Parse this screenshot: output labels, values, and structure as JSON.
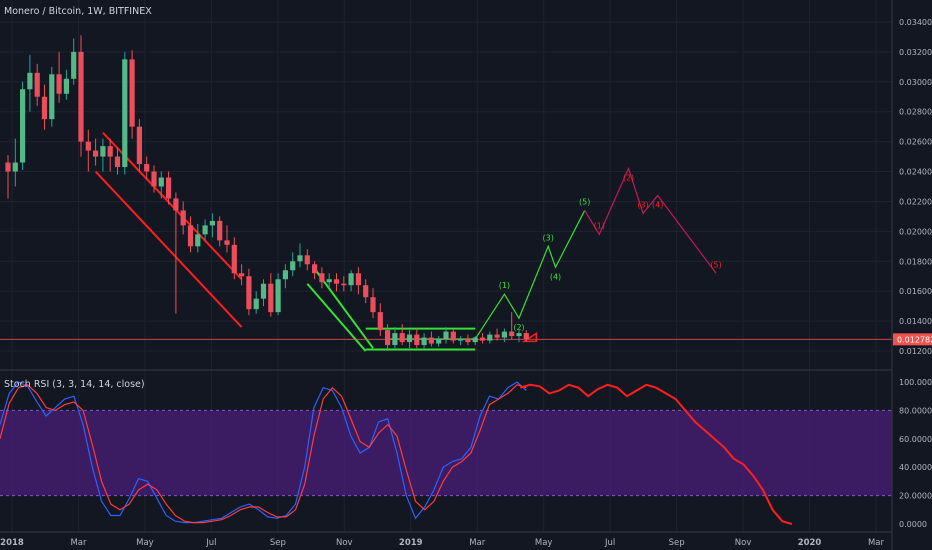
{
  "chart_data": [
    {
      "type": "candlestick",
      "title": "Monero / Bitcoin, 1W, BITFINEX",
      "symbol": "Monero / Bitcoin",
      "interval": "1W",
      "exchange": "BITFINEX",
      "current_price_label": "0.012782",
      "current_price": 0.012782,
      "ylim": [
        0.011,
        0.0352
      ],
      "y_ticks": [
        "0.012000",
        "0.014000",
        "0.016000",
        "0.018000",
        "0.020000",
        "0.022000",
        "0.024000",
        "0.026000",
        "0.028000",
        "0.030000",
        "0.032000",
        "0.034000"
      ],
      "x_ticks": [
        "2018",
        "Mar",
        "May",
        "Jul",
        "Sep",
        "Nov",
        "2019",
        "Mar",
        "May",
        "Jul",
        "Sep",
        "Nov",
        "2020",
        "Mar"
      ],
      "candles": [
        {
          "o": 0.0246,
          "h": 0.0251,
          "l": 0.0222,
          "c": 0.024
        },
        {
          "o": 0.024,
          "h": 0.0262,
          "l": 0.023,
          "c": 0.0246
        },
        {
          "o": 0.0246,
          "h": 0.03,
          "l": 0.0241,
          "c": 0.0295
        },
        {
          "o": 0.0295,
          "h": 0.0318,
          "l": 0.028,
          "c": 0.0306
        },
        {
          "o": 0.0306,
          "h": 0.0312,
          "l": 0.0284,
          "c": 0.029
        },
        {
          "o": 0.029,
          "h": 0.0298,
          "l": 0.0268,
          "c": 0.0275
        },
        {
          "o": 0.0275,
          "h": 0.031,
          "l": 0.027,
          "c": 0.0305
        },
        {
          "o": 0.0305,
          "h": 0.032,
          "l": 0.0286,
          "c": 0.0292
        },
        {
          "o": 0.0292,
          "h": 0.0308,
          "l": 0.0288,
          "c": 0.0302
        },
        {
          "o": 0.0302,
          "h": 0.0329,
          "l": 0.0298,
          "c": 0.032
        },
        {
          "o": 0.032,
          "h": 0.0331,
          "l": 0.025,
          "c": 0.026
        },
        {
          "o": 0.026,
          "h": 0.0268,
          "l": 0.024,
          "c": 0.0254
        },
        {
          "o": 0.0254,
          "h": 0.0262,
          "l": 0.0244,
          "c": 0.025
        },
        {
          "o": 0.025,
          "h": 0.0262,
          "l": 0.024,
          "c": 0.0257
        },
        {
          "o": 0.0257,
          "h": 0.0262,
          "l": 0.024,
          "c": 0.025
        },
        {
          "o": 0.025,
          "h": 0.0256,
          "l": 0.0238,
          "c": 0.0243
        },
        {
          "o": 0.0243,
          "h": 0.032,
          "l": 0.0238,
          "c": 0.0315
        },
        {
          "o": 0.0315,
          "h": 0.0321,
          "l": 0.0262,
          "c": 0.027
        },
        {
          "o": 0.027,
          "h": 0.0275,
          "l": 0.024,
          "c": 0.0245
        },
        {
          "o": 0.0245,
          "h": 0.025,
          "l": 0.0235,
          "c": 0.024
        },
        {
          "o": 0.024,
          "h": 0.0244,
          "l": 0.0226,
          "c": 0.023
        },
        {
          "o": 0.023,
          "h": 0.024,
          "l": 0.0222,
          "c": 0.0236
        },
        {
          "o": 0.0236,
          "h": 0.024,
          "l": 0.0218,
          "c": 0.0222
        },
        {
          "o": 0.0222,
          "h": 0.0226,
          "l": 0.0145,
          "c": 0.0214
        },
        {
          "o": 0.0214,
          "h": 0.022,
          "l": 0.0198,
          "c": 0.0204
        },
        {
          "o": 0.0204,
          "h": 0.021,
          "l": 0.0186,
          "c": 0.019
        },
        {
          "o": 0.019,
          "h": 0.0205,
          "l": 0.0186,
          "c": 0.0198
        },
        {
          "o": 0.0198,
          "h": 0.0208,
          "l": 0.0194,
          "c": 0.0204
        },
        {
          "o": 0.0204,
          "h": 0.0212,
          "l": 0.0196,
          "c": 0.0207
        },
        {
          "o": 0.0207,
          "h": 0.021,
          "l": 0.019,
          "c": 0.0194
        },
        {
          "o": 0.0194,
          "h": 0.0204,
          "l": 0.0186,
          "c": 0.0191
        },
        {
          "o": 0.0191,
          "h": 0.0196,
          "l": 0.0168,
          "c": 0.0172
        },
        {
          "o": 0.0172,
          "h": 0.0178,
          "l": 0.0164,
          "c": 0.017
        },
        {
          "o": 0.017,
          "h": 0.0175,
          "l": 0.0144,
          "c": 0.0148
        },
        {
          "o": 0.0148,
          "h": 0.016,
          "l": 0.0145,
          "c": 0.0155
        },
        {
          "o": 0.0155,
          "h": 0.0168,
          "l": 0.015,
          "c": 0.0165
        },
        {
          "o": 0.0165,
          "h": 0.0172,
          "l": 0.0143,
          "c": 0.0146
        },
        {
          "o": 0.0146,
          "h": 0.0172,
          "l": 0.0144,
          "c": 0.0168
        },
        {
          "o": 0.0168,
          "h": 0.0178,
          "l": 0.0162,
          "c": 0.0174
        },
        {
          "o": 0.0174,
          "h": 0.0186,
          "l": 0.017,
          "c": 0.018
        },
        {
          "o": 0.018,
          "h": 0.0192,
          "l": 0.0176,
          "c": 0.0184
        },
        {
          "o": 0.0184,
          "h": 0.0188,
          "l": 0.0174,
          "c": 0.0178
        },
        {
          "o": 0.0178,
          "h": 0.018,
          "l": 0.0168,
          "c": 0.0172
        },
        {
          "o": 0.0172,
          "h": 0.0176,
          "l": 0.0162,
          "c": 0.0166
        },
        {
          "o": 0.0166,
          "h": 0.0172,
          "l": 0.0162,
          "c": 0.0168
        },
        {
          "o": 0.0168,
          "h": 0.0172,
          "l": 0.016,
          "c": 0.0165
        },
        {
          "o": 0.0165,
          "h": 0.017,
          "l": 0.016,
          "c": 0.0164
        },
        {
          "o": 0.0164,
          "h": 0.0174,
          "l": 0.016,
          "c": 0.0172
        },
        {
          "o": 0.0172,
          "h": 0.0176,
          "l": 0.0158,
          "c": 0.0164
        },
        {
          "o": 0.0164,
          "h": 0.0168,
          "l": 0.0152,
          "c": 0.0156
        },
        {
          "o": 0.0156,
          "h": 0.0162,
          "l": 0.0142,
          "c": 0.0146
        },
        {
          "o": 0.0146,
          "h": 0.0152,
          "l": 0.013,
          "c": 0.0134
        },
        {
          "o": 0.0134,
          "h": 0.0138,
          "l": 0.012,
          "c": 0.0124
        },
        {
          "o": 0.0124,
          "h": 0.0136,
          "l": 0.0122,
          "c": 0.0132
        },
        {
          "o": 0.0132,
          "h": 0.0138,
          "l": 0.0124,
          "c": 0.0126
        },
        {
          "o": 0.0126,
          "h": 0.0134,
          "l": 0.0122,
          "c": 0.0131
        },
        {
          "o": 0.0131,
          "h": 0.0135,
          "l": 0.0122,
          "c": 0.0124
        },
        {
          "o": 0.0124,
          "h": 0.0132,
          "l": 0.0122,
          "c": 0.0129
        },
        {
          "o": 0.0129,
          "h": 0.0133,
          "l": 0.0123,
          "c": 0.0125
        },
        {
          "o": 0.0125,
          "h": 0.013,
          "l": 0.0123,
          "c": 0.0128
        },
        {
          "o": 0.0128,
          "h": 0.0136,
          "l": 0.0125,
          "c": 0.0133
        },
        {
          "o": 0.0133,
          "h": 0.0135,
          "l": 0.0125,
          "c": 0.0127
        },
        {
          "o": 0.0127,
          "h": 0.013,
          "l": 0.0124,
          "c": 0.0128
        },
        {
          "o": 0.0128,
          "h": 0.0131,
          "l": 0.0124,
          "c": 0.0126
        },
        {
          "o": 0.0126,
          "h": 0.013,
          "l": 0.0124,
          "c": 0.0129
        },
        {
          "o": 0.0129,
          "h": 0.0132,
          "l": 0.0125,
          "c": 0.0127
        },
        {
          "o": 0.0127,
          "h": 0.0133,
          "l": 0.0125,
          "c": 0.0131
        },
        {
          "o": 0.0131,
          "h": 0.0135,
          "l": 0.0127,
          "c": 0.0129
        },
        {
          "o": 0.0129,
          "h": 0.0135,
          "l": 0.0126,
          "c": 0.0133
        },
        {
          "o": 0.0133,
          "h": 0.0146,
          "l": 0.0128,
          "c": 0.013
        },
        {
          "o": 0.013,
          "h": 0.0134,
          "l": 0.0126,
          "c": 0.0132
        },
        {
          "o": 0.0132,
          "h": 0.0134,
          "l": 0.0126,
          "c": 0.0128
        }
      ],
      "channel_bearish": {
        "color": "#ff1e1e",
        "upper": [
          [
            13,
            0.0266
          ],
          [
            32,
            0.0168
          ]
        ],
        "lower": [
          [
            12,
            0.024
          ],
          [
            32,
            0.0136
          ]
        ]
      },
      "channel_wedge": {
        "color": "#33e233",
        "upper": [
          [
            42,
            0.0175
          ],
          [
            50,
            0.0122
          ]
        ],
        "lower": [
          [
            41,
            0.0165
          ],
          [
            49,
            0.012
          ]
        ]
      },
      "range_box": {
        "color": "#33e233",
        "top": 0.0135,
        "bottom": 0.0121,
        "mid": 0.0128,
        "from": 49,
        "to": 64
      },
      "wave_bull": {
        "color": "#33e233",
        "points": [
          [
            64,
            0.0128
          ],
          [
            68,
            0.0158
          ],
          [
            70,
            0.0142
          ],
          [
            74,
            0.019
          ],
          [
            75,
            0.0176
          ],
          [
            79,
            0.0214
          ]
        ],
        "labels": [
          "(1)",
          "(2)",
          "(3)",
          "(4)",
          "(5)"
        ]
      },
      "wave_bear": {
        "color": "#c2185b",
        "points": [
          [
            79,
            0.0214
          ],
          [
            81,
            0.0198
          ],
          [
            85,
            0.0242
          ],
          [
            87,
            0.0212
          ],
          [
            89,
            0.0224
          ],
          [
            97,
            0.0172
          ]
        ],
        "labels": [
          "(1)",
          "(2)",
          "(3)",
          "(4)",
          "(5)"
        ]
      },
      "label_colors": {
        "bull": "#33e233",
        "bear": "#ff1e1e"
      }
    },
    {
      "type": "line",
      "title": "Stoch RSI (3, 3, 14, 14, close)",
      "ylim": [
        0,
        100
      ],
      "y_ticks": [
        "0.0000",
        "20.0000",
        "40.0000",
        "60.0000",
        "80.0000",
        "100.0000"
      ],
      "band": [
        20,
        80
      ],
      "band_color": "#4a1f7a",
      "series": [
        {
          "color": "#2962ff",
          "values": [
            70,
            92,
            100,
            97,
            86,
            76,
            82,
            88,
            90,
            70,
            40,
            16,
            6,
            6,
            18,
            32,
            30,
            18,
            6,
            2,
            1,
            1,
            2,
            3,
            4,
            8,
            12,
            14,
            10,
            5,
            4,
            6,
            14,
            40,
            82,
            96,
            94,
            82,
            62,
            50,
            54,
            72,
            74,
            50,
            20,
            4,
            12,
            24,
            40,
            44,
            46,
            54,
            76,
            90,
            88,
            96,
            100,
            94
          ]
        },
        {
          "color": "#ff3b3b",
          "values": [
            60,
            85,
            96,
            98,
            92,
            82,
            80,
            84,
            86,
            80,
            56,
            30,
            14,
            10,
            14,
            24,
            28,
            24,
            14,
            6,
            2,
            1,
            1,
            2,
            3,
            6,
            10,
            12,
            12,
            8,
            5,
            5,
            10,
            28,
            62,
            88,
            96,
            90,
            74,
            58,
            54,
            64,
            70,
            62,
            38,
            16,
            10,
            16,
            30,
            40,
            44,
            50,
            66,
            84,
            88,
            92,
            98,
            96
          ]
        },
        {
          "color": "#ff1e1e",
          "values": [
            96,
            98,
            97,
            92,
            94,
            98,
            96,
            90,
            95,
            98,
            96,
            90,
            94,
            98,
            96,
            92,
            88,
            80,
            72,
            66,
            60,
            54,
            46,
            42,
            34,
            24,
            10,
            2,
            0
          ]
        }
      ]
    }
  ]
}
